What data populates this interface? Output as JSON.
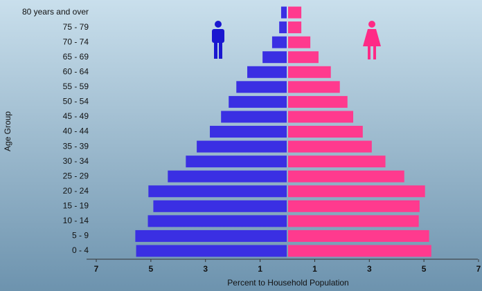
{
  "chart_data": {
    "type": "pyramid",
    "x_label": "Percent to Household Population",
    "y_label": "Age Group",
    "categories": [
      "0 - 4",
      "5 - 9",
      "10 - 14",
      "15 - 19",
      "20 - 24",
      "25 - 29",
      "30 - 34",
      "35 - 39",
      "40 - 44",
      "45 - 49",
      "50 - 54",
      "55 - 59",
      "60 - 64",
      "65 - 69",
      "70 - 74",
      "75 - 79",
      "80 years and over"
    ],
    "series": [
      {
        "color": "#3a2fe3",
        "values": [
          -5.54,
          -5.57,
          -5.11,
          -4.91,
          -5.09,
          -4.38,
          -3.72,
          -3.32,
          -2.84,
          -2.43,
          -2.15,
          -1.87,
          -1.47,
          -0.91,
          -0.56,
          -0.3,
          -0.23
        ]
      },
      {
        "color": "#ff3a8e",
        "values": [
          5.27,
          5.19,
          4.81,
          4.84,
          5.04,
          4.28,
          3.59,
          3.09,
          2.76,
          2.41,
          2.2,
          1.92,
          1.59,
          1.14,
          0.84,
          0.51,
          0.51
        ]
      }
    ],
    "xlim": [
      -7,
      7
    ],
    "xticks": [
      {
        "value": -7,
        "label": "7"
      },
      {
        "value": -5,
        "label": "5"
      },
      {
        "value": -3,
        "label": "3"
      },
      {
        "value": -1,
        "label": "1"
      },
      1,
      3,
      5,
      7
    ]
  }
}
